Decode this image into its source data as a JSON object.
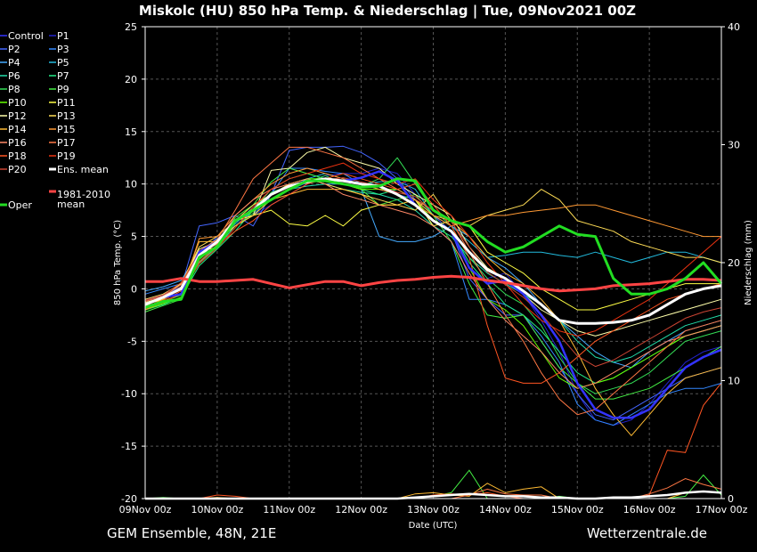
{
  "chart_data": {
    "type": "line",
    "title": "Miskolc  (HU)  850 hPa Temp. & Niederschlag | Tue, 09Nov2021 00Z",
    "xlabel": "Date (UTC)",
    "ylabel": "850 hPa Temp. (°C)",
    "y2label": "Niederschlag (mm)",
    "footer_left": "GEM Ensemble, 48N, 21E",
    "footer_right": "Wetterzentrale.de",
    "x_ticks": [
      "09Nov 00z",
      "10Nov 00z",
      "11Nov 00z",
      "12Nov 00z",
      "13Nov 00z",
      "14Nov 00z",
      "15Nov 00z",
      "16Nov 00z",
      "17Nov 00z"
    ],
    "x_hours": [
      0,
      6,
      12,
      18,
      24,
      30,
      36,
      42,
      48,
      54,
      60,
      66,
      72,
      78,
      84,
      90,
      96,
      102,
      108,
      114,
      120,
      126,
      132,
      138,
      144,
      150,
      156,
      162,
      168,
      174,
      180,
      186,
      192
    ],
    "ylim": [
      -20,
      25
    ],
    "y_ticks": [
      -20,
      -15,
      -10,
      -5,
      0,
      5,
      10,
      15,
      20,
      25
    ],
    "y2lim": [
      0,
      40
    ],
    "y2_ticks": [
      0,
      10,
      20,
      30,
      40
    ],
    "grid": true,
    "legend_position": "left",
    "series": [
      {
        "name": "Control",
        "color": "#3333ff",
        "values": [
          -1.5,
          -0.8,
          -0.5,
          3.5,
          4.5,
          6.5,
          7.5,
          8.5,
          9.5,
          10.2,
          10.5,
          10.3,
          10.6,
          11.2,
          10.3,
          8.0,
          6.5,
          5.5,
          2.0,
          0.5,
          0.8,
          -0.5,
          -2.5,
          -5.0,
          -9.0,
          -11.5,
          -12.3,
          -12.3,
          -11.5,
          -9.5,
          -7.5,
          -6.5,
          -5.8
        ]
      },
      {
        "name": "P1",
        "color": "#2222cc",
        "values": [
          -1.0,
          -0.5,
          0.5,
          3.0,
          5.0,
          6.5,
          7.0,
          8.0,
          9.0,
          10.0,
          10.8,
          11.0,
          11.0,
          11.5,
          11.0,
          9.0,
          7.0,
          6.0,
          3.0,
          1.0,
          1.5,
          -0.5,
          -3.0,
          -6.0,
          -10.0,
          -12.5,
          -13.0,
          -12.5,
          -11.0,
          -9.0,
          -7.0,
          -6.0,
          -5.5
        ]
      },
      {
        "name": "P2",
        "color": "#4466ff",
        "values": [
          -1.2,
          -0.6,
          0.2,
          6.0,
          6.3,
          7.0,
          6.0,
          9.0,
          13.2,
          13.5,
          13.5,
          13.6,
          13.0,
          12.0,
          10.5,
          8.5,
          7.0,
          5.5,
          1.0,
          -1.0,
          -2.5,
          -2.5,
          -5.0,
          -7.5,
          -10.0,
          -12.0,
          -12.5,
          -11.5,
          -10.5,
          -9.5,
          -8.5,
          -8.0,
          -7.5
        ]
      },
      {
        "name": "P3",
        "color": "#3388ff",
        "values": [
          -0.5,
          0.0,
          0.5,
          3.0,
          4.5,
          6.0,
          7.0,
          9.0,
          11.5,
          11.5,
          11.2,
          11.0,
          10.0,
          9.5,
          9.0,
          8.5,
          6.0,
          4.5,
          -1.0,
          -1.0,
          -1.5,
          -2.5,
          -4.5,
          -7.0,
          -11.0,
          -12.5,
          -13.0,
          -12.0,
          -11.0,
          -10.0,
          -9.5,
          -9.5,
          -9.0
        ]
      },
      {
        "name": "P4",
        "color": "#44aaff",
        "values": [
          -0.2,
          0.2,
          0.8,
          3.5,
          4.8,
          6.0,
          7.5,
          8.5,
          9.5,
          10.5,
          10.0,
          10.0,
          9.5,
          5.0,
          4.5,
          4.5,
          5.0,
          6.0,
          5.0,
          3.0,
          2.0,
          0.5,
          -1.5,
          -3.0,
          -4.5,
          -6.0,
          -7.0,
          -7.5,
          -6.0,
          -5.0,
          -4.0,
          -3.5,
          -3.0
        ]
      },
      {
        "name": "P5",
        "color": "#22bbdd",
        "values": [
          -1.5,
          -1.0,
          0.0,
          3.0,
          4.5,
          6.2,
          7.8,
          9.0,
          10.0,
          10.5,
          11.0,
          10.5,
          10.0,
          10.2,
          10.3,
          9.5,
          7.0,
          6.0,
          4.5,
          3.0,
          3.2,
          3.5,
          3.5,
          3.2,
          3.0,
          3.5,
          3.0,
          2.5,
          3.0,
          3.5,
          3.5,
          3.0,
          2.5
        ]
      },
      {
        "name": "P6",
        "color": "#22ddaa",
        "values": [
          -1.8,
          -1.2,
          -0.5,
          2.5,
          4.0,
          6.0,
          7.0,
          8.5,
          9.5,
          9.8,
          10.0,
          9.5,
          9.2,
          9.0,
          8.5,
          7.5,
          6.0,
          5.0,
          3.0,
          1.5,
          0.5,
          -0.5,
          -1.5,
          -3.0,
          -5.0,
          -6.5,
          -7.0,
          -6.5,
          -5.5,
          -4.5,
          -3.5,
          -3.0,
          -2.5
        ]
      },
      {
        "name": "P7",
        "color": "#22ee88",
        "values": [
          -2.0,
          -1.5,
          -0.8,
          2.2,
          3.8,
          5.5,
          7.5,
          9.5,
          10.5,
          11.0,
          10.5,
          10.0,
          9.5,
          9.0,
          9.5,
          8.5,
          6.5,
          5.5,
          2.5,
          0.5,
          -1.5,
          -2.5,
          -4.0,
          -6.0,
          -8.0,
          -9.0,
          -8.5,
          -7.5,
          -6.5,
          -5.5,
          -4.5,
          -4.0,
          -3.5
        ]
      },
      {
        "name": "P8",
        "color": "#33dd55",
        "values": [
          -1.6,
          -1.2,
          -0.6,
          3.2,
          4.6,
          6.0,
          7.2,
          9.2,
          9.8,
          10.2,
          10.8,
          10.0,
          9.8,
          10.5,
          12.5,
          10.0,
          7.5,
          6.0,
          3.0,
          1.0,
          -0.5,
          -1.5,
          -3.5,
          -6.5,
          -9.0,
          -10.0,
          -9.5,
          -9.0,
          -8.0,
          -6.5,
          -5.0,
          -4.5,
          -4.0
        ]
      },
      {
        "name": "P9",
        "color": "#44ee44",
        "values": [
          -2.2,
          -1.6,
          -1.0,
          2.8,
          4.2,
          6.8,
          8.0,
          10.2,
          11.5,
          11.0,
          10.5,
          10.0,
          9.5,
          8.0,
          8.5,
          9.0,
          7.0,
          4.5,
          0.5,
          -2.5,
          -2.8,
          -2.5,
          -5.0,
          -7.5,
          -9.0,
          -10.5,
          -10.5,
          -10.0,
          -9.5,
          -8.5,
          -7.5,
          -6.5,
          -5.5
        ]
      },
      {
        "name": "P10",
        "color": "#66ff00",
        "values": [
          -2.0,
          -1.4,
          -0.8,
          3.0,
          4.5,
          6.5,
          7.5,
          9.0,
          10.0,
          10.5,
          10.5,
          10.0,
          9.5,
          9.5,
          9.5,
          8.5,
          6.5,
          5.5,
          2.0,
          -1.0,
          -2.0,
          -3.5,
          -6.0,
          -8.5,
          -9.5,
          -9.0,
          -8.5,
          -7.5,
          -6.5,
          -5.5,
          -4.5,
          -4.0,
          -3.5
        ]
      },
      {
        "name": "P11",
        "color": "#ffff44",
        "values": [
          -1.5,
          -1.0,
          0.0,
          3.5,
          4.0,
          6.5,
          7.0,
          7.5,
          6.2,
          6.0,
          7.0,
          6.0,
          7.5,
          8.0,
          8.0,
          8.5,
          6.0,
          6.5,
          6.0,
          3.5,
          2.5,
          1.5,
          0.0,
          -1.0,
          -2.0,
          -2.0,
          -1.5,
          -1.0,
          -0.5,
          0.0,
          0.5,
          0.5,
          0.5
        ]
      },
      {
        "name": "P12",
        "color": "#ffffaa",
        "values": [
          -1.3,
          -0.8,
          0.5,
          3.8,
          4.5,
          6.0,
          7.0,
          11.3,
          11.5,
          13.0,
          13.5,
          12.5,
          12.0,
          11.5,
          10.0,
          9.0,
          8.0,
          7.0,
          4.0,
          2.0,
          1.0,
          -0.5,
          -2.0,
          -3.0,
          -4.0,
          -4.5,
          -4.0,
          -3.5,
          -3.0,
          -2.5,
          -2.0,
          -1.5,
          -1.0
        ]
      },
      {
        "name": "P13",
        "color": "#ffdd55",
        "values": [
          -1.0,
          -0.5,
          0.5,
          4.0,
          5.0,
          6.5,
          8.0,
          9.0,
          10.0,
          10.5,
          10.0,
          9.5,
          9.0,
          8.5,
          8.0,
          7.5,
          9.0,
          6.5,
          6.0,
          7.0,
          7.5,
          8.0,
          9.5,
          8.5,
          6.5,
          6.0,
          5.5,
          4.5,
          4.0,
          3.5,
          3.0,
          3.0,
          2.5
        ]
      },
      {
        "name": "P14",
        "color": "#ffbb33",
        "values": [
          -1.8,
          -1.0,
          0.0,
          4.5,
          4.5,
          6.0,
          7.0,
          8.5,
          9.0,
          9.5,
          9.5,
          9.5,
          9.0,
          8.0,
          8.0,
          8.5,
          7.0,
          6.5,
          5.0,
          3.0,
          1.5,
          0.5,
          -1.0,
          -3.0,
          -6.0,
          -9.5,
          -12.0,
          -14.0,
          -12.0,
          -10.0,
          -8.5,
          -8.0,
          -7.5
        ]
      },
      {
        "name": "P15",
        "color": "#ff9933",
        "values": [
          -2.0,
          -1.2,
          -0.5,
          4.8,
          5.0,
          7.0,
          8.5,
          10.0,
          11.0,
          11.5,
          11.0,
          10.5,
          10.0,
          9.5,
          9.0,
          8.0,
          7.0,
          6.0,
          6.5,
          7.0,
          7.0,
          7.3,
          7.5,
          7.7,
          8.0,
          8.0,
          7.5,
          7.0,
          6.5,
          6.0,
          5.5,
          5.0,
          5.0
        ]
      },
      {
        "name": "P16",
        "color": "#ff8866",
        "values": [
          -1.4,
          -0.9,
          0.2,
          3.3,
          4.3,
          7.0,
          8.5,
          9.5,
          10.0,
          10.5,
          10.0,
          9.0,
          8.5,
          8.0,
          7.5,
          7.0,
          6.0,
          4.5,
          1.5,
          -1.0,
          -3.0,
          -4.5,
          -6.0,
          -8.0,
          -9.5,
          -9.0,
          -8.0,
          -7.0,
          -6.0,
          -5.0,
          -4.5,
          -4.0,
          -3.5
        ]
      },
      {
        "name": "P17",
        "color": "#ff7744",
        "values": [
          -1.2,
          -0.7,
          0.4,
          3.6,
          4.7,
          7.5,
          10.5,
          12.0,
          13.5,
          13.5,
          13.0,
          12.5,
          11.5,
          10.5,
          9.5,
          8.5,
          7.5,
          6.5,
          3.5,
          0.5,
          -2.5,
          -5.0,
          -8.0,
          -10.5,
          -12.0,
          -11.5,
          -10.0,
          -8.5,
          -7.0,
          -5.5,
          -4.0,
          -3.5,
          -3.0
        ]
      },
      {
        "name": "P18",
        "color": "#ff5522",
        "values": [
          -1.7,
          -1.1,
          -0.2,
          2.6,
          4.1,
          5.5,
          6.5,
          8.0,
          9.0,
          10.0,
          10.5,
          11.0,
          10.5,
          10.0,
          9.5,
          10.0,
          8.0,
          6.0,
          3.0,
          -3.5,
          -8.5,
          -9.0,
          -9.0,
          -8.0,
          -6.5,
          -5.0,
          -4.0,
          -3.0,
          -2.0,
          -1.0,
          -0.5,
          0.0,
          0.5
        ]
      },
      {
        "name": "P19",
        "color": "#ee3311",
        "values": [
          -1.9,
          -1.3,
          -0.4,
          2.4,
          3.9,
          5.8,
          7.8,
          9.5,
          10.5,
          11.0,
          11.5,
          12.0,
          11.0,
          10.5,
          10.0,
          10.5,
          8.5,
          7.0,
          5.0,
          2.5,
          0.5,
          -1.5,
          -3.0,
          -4.0,
          -4.5,
          -4.0,
          -3.0,
          -2.0,
          -1.0,
          0.5,
          2.0,
          3.5,
          5.0
        ]
      },
      {
        "name": "P20",
        "color": "#cc4433",
        "values": [
          -1.1,
          -0.6,
          0.6,
          3.4,
          4.4,
          6.6,
          7.6,
          8.6,
          9.6,
          10.1,
          10.4,
          10.6,
          10.2,
          9.8,
          9.2,
          8.8,
          7.4,
          6.4,
          4.0,
          1.6,
          0.4,
          -0.8,
          -2.4,
          -4.4,
          -6.4,
          -7.4,
          -6.8,
          -5.8,
          -4.8,
          -3.8,
          -2.8,
          -2.2,
          -1.8
        ]
      },
      {
        "name": "Ens. mean",
        "color": "#ffffff",
        "values": [
          -1.5,
          -0.8,
          0.0,
          3.2,
          4.5,
          6.5,
          7.5,
          9.0,
          9.8,
          10.2,
          10.5,
          10.3,
          10.0,
          9.8,
          9.0,
          8.0,
          6.5,
          5.5,
          3.5,
          1.8,
          1.0,
          -0.2,
          -1.5,
          -3.0,
          -3.3,
          -3.3,
          -3.2,
          -3.0,
          -2.5,
          -1.5,
          -0.5,
          0.0,
          0.3
        ]
      },
      {
        "name": "1981-2010 mean",
        "color": "#ff4444",
        "values": [
          0.7,
          0.7,
          1.0,
          0.7,
          0.7,
          0.8,
          0.9,
          0.5,
          0.1,
          0.4,
          0.7,
          0.7,
          0.3,
          0.6,
          0.8,
          0.9,
          1.1,
          1.2,
          1.1,
          0.8,
          0.6,
          0.3,
          0.0,
          -0.2,
          -0.1,
          0.0,
          0.3,
          0.4,
          0.5,
          0.7,
          0.9,
          0.9,
          0.8
        ]
      },
      {
        "name": "Oper",
        "color": "#22dd22",
        "values": [
          -1.8,
          -1.2,
          -1.0,
          3.0,
          4.0,
          6.5,
          7.5,
          8.5,
          9.5,
          10.3,
          10.3,
          10.0,
          9.7,
          9.8,
          10.5,
          10.3,
          7.5,
          6.5,
          6.0,
          4.5,
          3.5,
          4.0,
          5.0,
          6.0,
          5.2,
          5.0,
          1.0,
          -0.5,
          -0.5,
          0.0,
          1.0,
          2.5,
          0.5
        ]
      }
    ],
    "precip_series": [
      {
        "name": "P9",
        "color": "#44ee44",
        "values": [
          0.0,
          0.1,
          0.0,
          0.0,
          0.0,
          0.0,
          0.0,
          0.0,
          0.0,
          0.0,
          0.0,
          0.0,
          0.0,
          0.0,
          0.0,
          0.0,
          0.2,
          0.5,
          2.4,
          0.0,
          0.0,
          0.0,
          0.0,
          0.2,
          0.0,
          0.0,
          0.0,
          0.0,
          0.0,
          0.0,
          0.2,
          2.0,
          0.3
        ]
      },
      {
        "name": "P14",
        "color": "#ffbb33",
        "values": [
          0.0,
          0.0,
          0.0,
          0.0,
          0.1,
          0.0,
          0.0,
          0.0,
          0.0,
          0.0,
          0.0,
          0.0,
          0.0,
          0.0,
          0.0,
          0.4,
          0.5,
          0.3,
          0.2,
          1.3,
          0.5,
          0.8,
          1.0,
          0.0,
          0.0,
          0.0,
          0.0,
          0.0,
          0.0,
          0.0,
          0.5,
          0.6,
          0.5
        ]
      },
      {
        "name": "P18",
        "color": "#ff5522",
        "values": [
          0.0,
          0.0,
          0.0,
          0.0,
          0.3,
          0.2,
          0.0,
          0.0,
          0.0,
          0.0,
          0.0,
          0.0,
          0.0,
          0.0,
          0.0,
          0.0,
          0.3,
          0.4,
          0.3,
          0.5,
          0.2,
          0.0,
          0.0,
          0.0,
          0.0,
          0.0,
          0.0,
          0.0,
          0.3,
          4.1,
          3.9,
          7.9,
          9.8
        ]
      },
      {
        "name": "P17",
        "color": "#ff7744",
        "values": [
          0.0,
          0.0,
          0.0,
          0.0,
          0.0,
          0.0,
          0.0,
          0.0,
          0.0,
          0.0,
          0.0,
          0.0,
          0.0,
          0.0,
          0.0,
          0.0,
          0.0,
          0.0,
          0.3,
          0.8,
          0.4,
          0.3,
          0.3,
          0.0,
          0.0,
          0.0,
          0.0,
          0.0,
          0.4,
          0.9,
          1.7,
          1.2,
          0.8
        ]
      },
      {
        "name": "Ens. mean",
        "color": "#ffffff",
        "values": [
          0.0,
          0.0,
          0.0,
          0.0,
          0.0,
          0.0,
          0.0,
          0.0,
          0.0,
          0.0,
          0.0,
          0.0,
          0.0,
          0.0,
          0.0,
          0.1,
          0.2,
          0.3,
          0.4,
          0.3,
          0.2,
          0.2,
          0.1,
          0.1,
          0.0,
          0.0,
          0.1,
          0.1,
          0.2,
          0.3,
          0.5,
          0.6,
          0.5
        ]
      },
      {
        "name": "Oper",
        "color": "#22dd22",
        "values": [
          0.0,
          0.0,
          0.0,
          0.0,
          0.0,
          0.0,
          0.0,
          0.0,
          0.0,
          0.0,
          0.0,
          0.0,
          0.0,
          0.0,
          0.0,
          0.0,
          0.0,
          0.0,
          0.0,
          0.0,
          0.0,
          0.0,
          0.0,
          0.0,
          0.0,
          0.0,
          0.0,
          0.0,
          0.0,
          0.0,
          0.0,
          0.0,
          0.0
        ]
      }
    ]
  }
}
